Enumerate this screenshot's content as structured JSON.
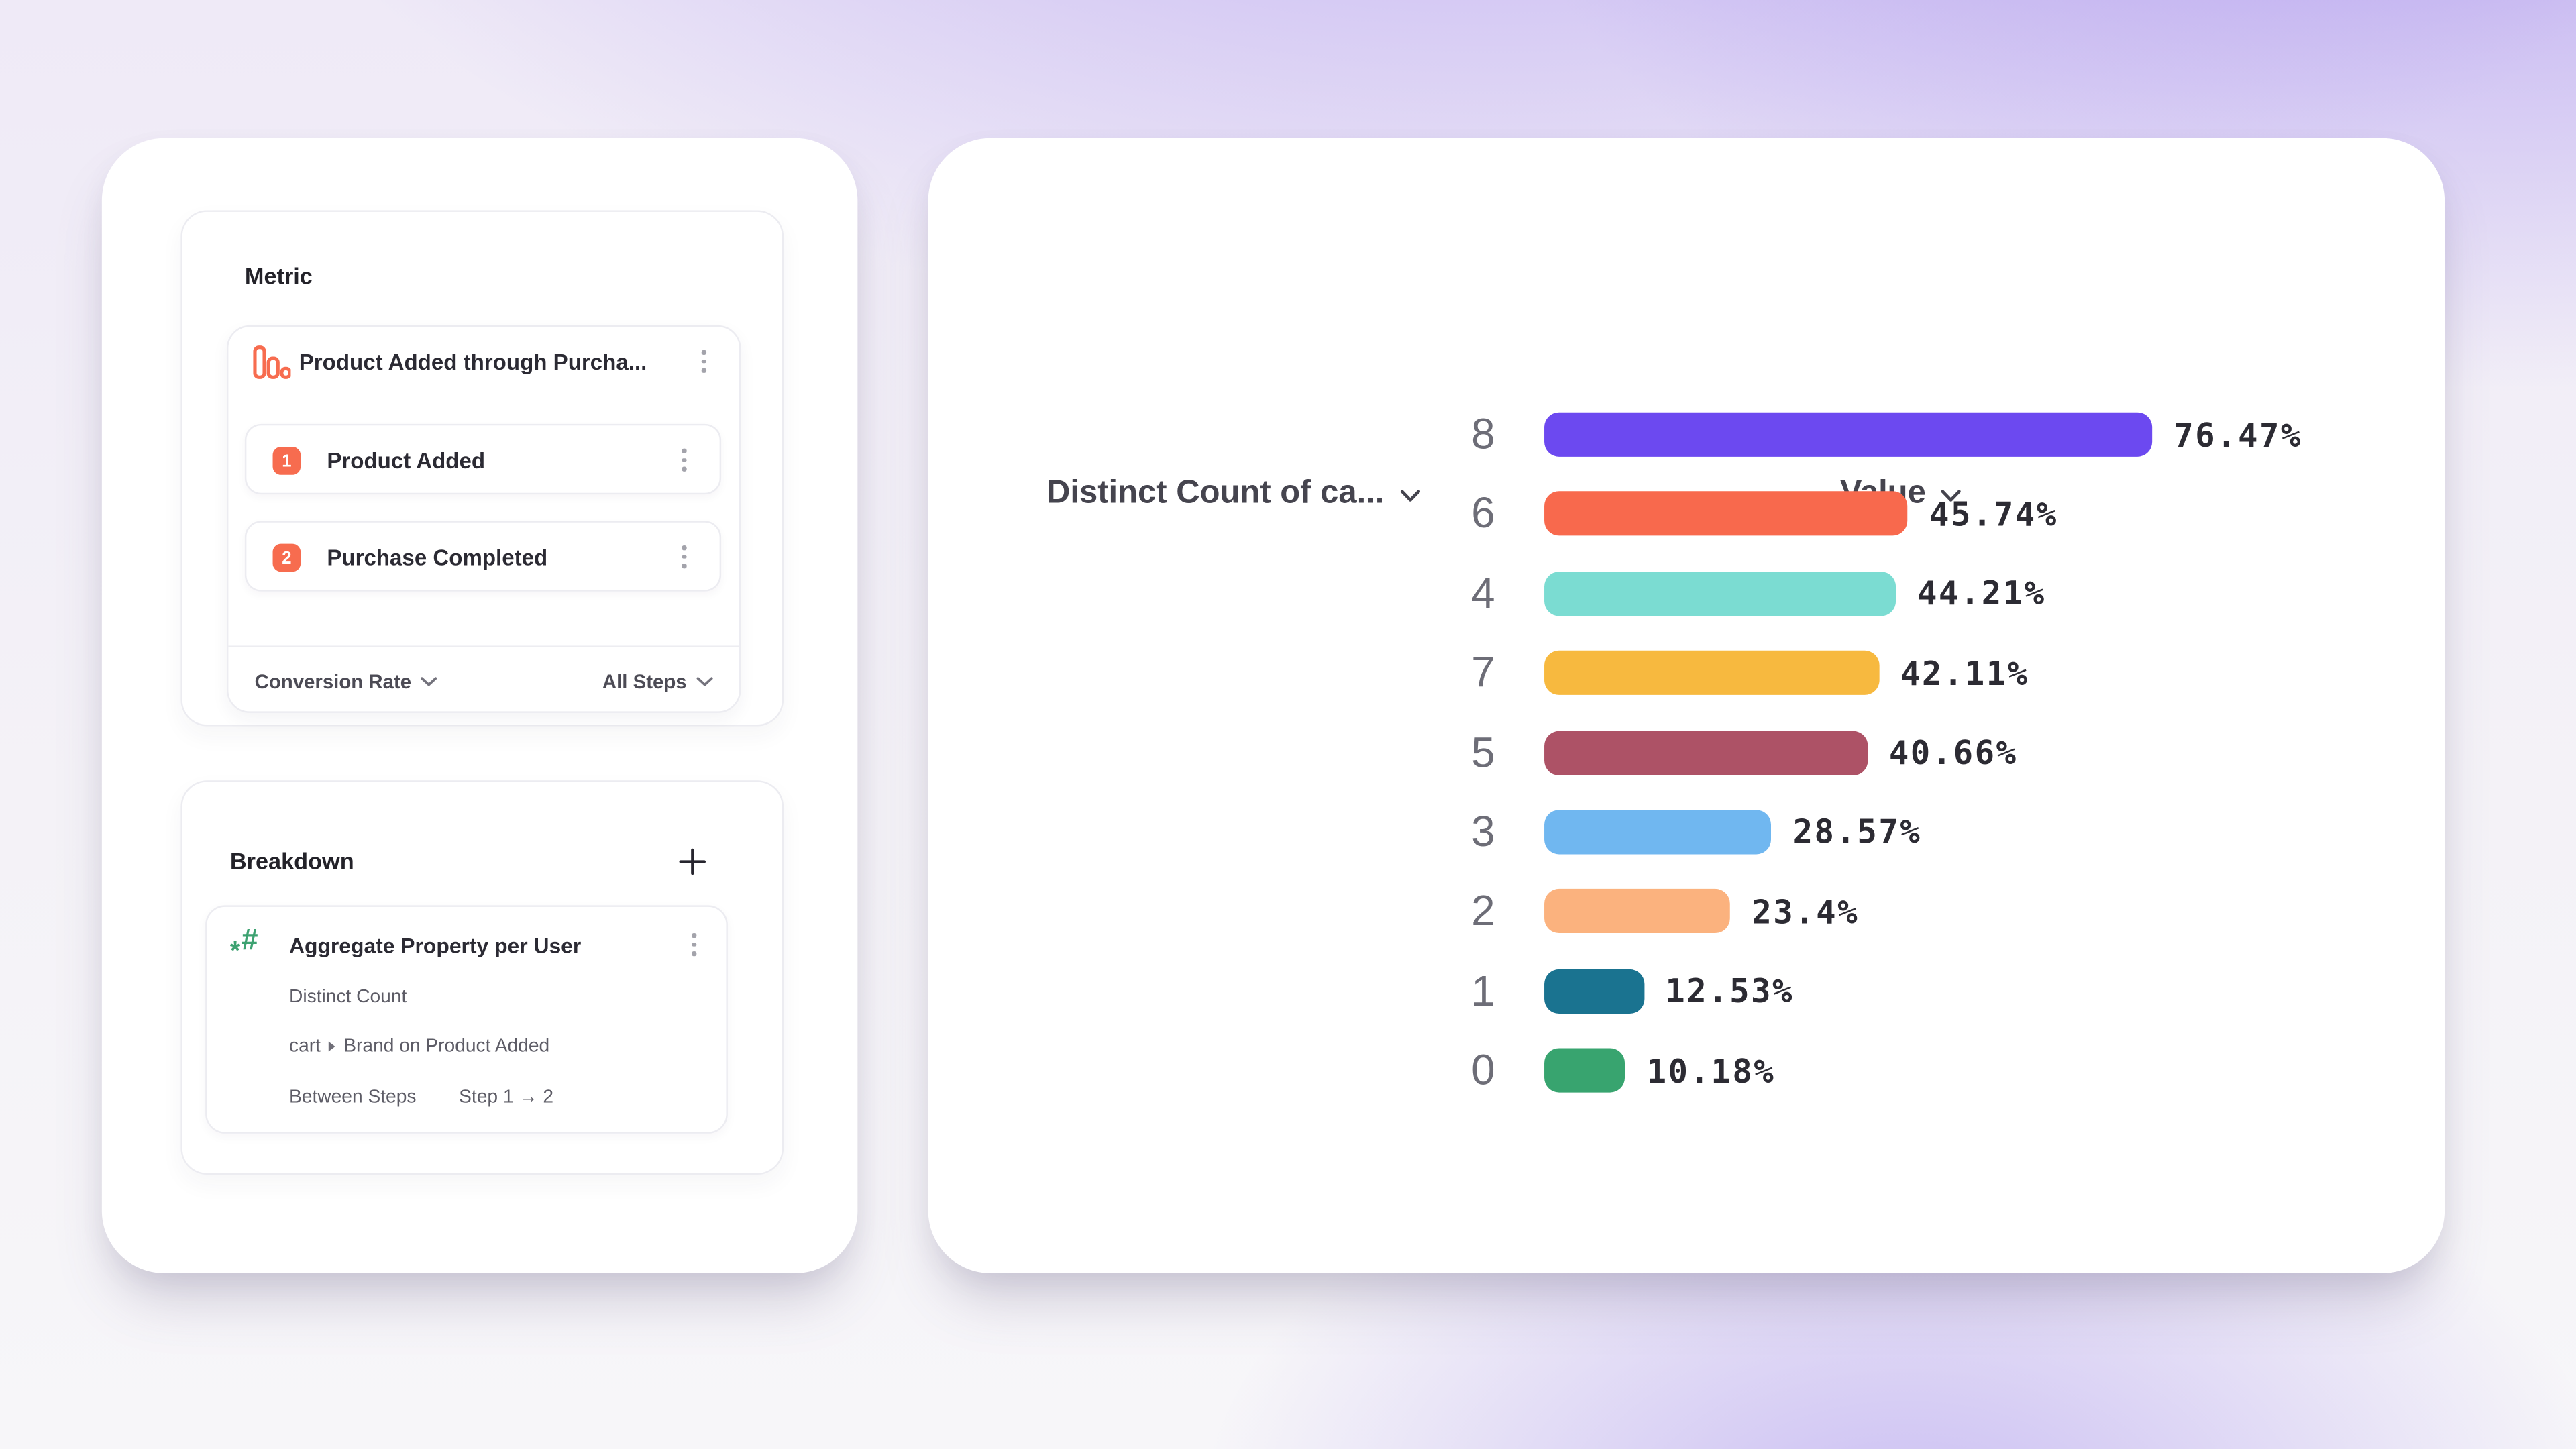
{
  "colors": {
    "accent_orange": "#F76C4F",
    "accent_green": "#3DA271",
    "text_dark": "#2B2A33",
    "text_gray": "#5D5C66"
  },
  "metric_panel": {
    "header": "Metric",
    "funnel_card": {
      "icon": "bar-chart-icon",
      "title": "Product Added through Purcha...",
      "steps": [
        {
          "number": "1",
          "label": "Product Added"
        },
        {
          "number": "2",
          "label": "Purchase Completed"
        }
      ],
      "measure_label": "Conversion Rate",
      "steps_filter_label": "All Steps"
    }
  },
  "breakdown_panel": {
    "header": "Breakdown",
    "add_button": "+",
    "item": {
      "icon": "hash-sparkle-icon",
      "hash_glyph": "#",
      "star_glyph": "*",
      "title": "Aggregate Property per User",
      "aggregation": "Distinct Count",
      "property_group": "cart",
      "property": "Brand on Product Added",
      "between_steps_label": "Between Steps",
      "between_steps_value": "Step 1 → 2"
    }
  },
  "chart_panel": {
    "category_header": "Distinct Count of ca...",
    "value_header": "Value"
  },
  "chart_data": {
    "type": "bar",
    "orientation": "horizontal",
    "title": "",
    "xlabel": "Value",
    "ylabel": "Distinct Count of ca...",
    "xlim": [
      0,
      100
    ],
    "grid": false,
    "legend": false,
    "categories": [
      "8",
      "6",
      "4",
      "7",
      "5",
      "3",
      "2",
      "1",
      "0"
    ],
    "values": [
      76.47,
      45.74,
      44.21,
      42.11,
      40.66,
      28.57,
      23.4,
      12.53,
      10.18
    ],
    "value_labels": [
      "76.47%",
      "45.74%",
      "44.21%",
      "42.11%",
      "40.66%",
      "28.57%",
      "23.4%",
      "12.53%",
      "10.18%"
    ],
    "bar_colors": [
      "#6C49F0",
      "#F8694D",
      "#7BDCD2",
      "#F7B93F",
      "#AD5266",
      "#70B7F0",
      "#FBB27E",
      "#1A7390",
      "#38A46F"
    ]
  }
}
